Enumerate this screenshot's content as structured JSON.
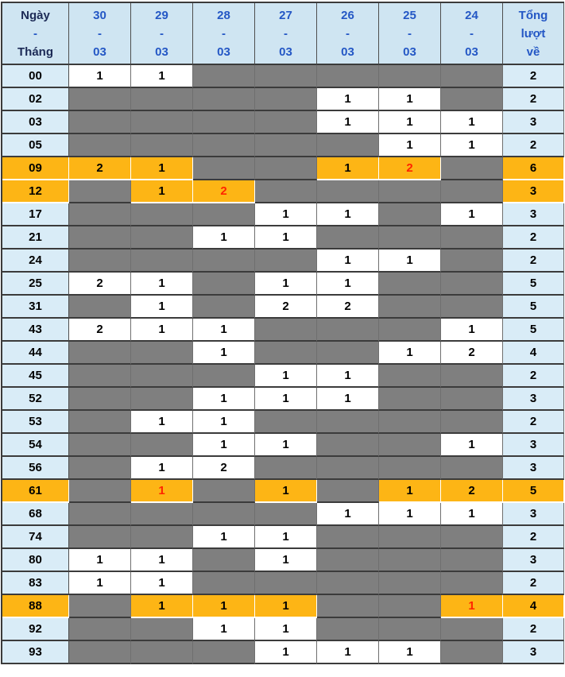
{
  "table": {
    "corner": {
      "line1": "Ngày",
      "dash": "-",
      "line2": "Tháng"
    },
    "date_columns": [
      {
        "day": "30",
        "dash": "-",
        "month": "03"
      },
      {
        "day": "29",
        "dash": "-",
        "month": "03"
      },
      {
        "day": "28",
        "dash": "-",
        "month": "03"
      },
      {
        "day": "27",
        "dash": "-",
        "month": "03"
      },
      {
        "day": "26",
        "dash": "-",
        "month": "03"
      },
      {
        "day": "25",
        "dash": "-",
        "month": "03"
      },
      {
        "day": "24",
        "dash": "-",
        "month": "03"
      }
    ],
    "total_header": {
      "line1": "Tổng",
      "line2": "lượt",
      "line3": "về"
    },
    "rows": [
      {
        "num": "00",
        "cells": [
          "1",
          "1",
          "",
          "",
          "",
          "",
          ""
        ],
        "total": "2",
        "hot": false,
        "red_cols": []
      },
      {
        "num": "02",
        "cells": [
          "",
          "",
          "",
          "",
          "1",
          "1",
          ""
        ],
        "total": "2",
        "hot": false,
        "red_cols": []
      },
      {
        "num": "03",
        "cells": [
          "",
          "",
          "",
          "",
          "1",
          "1",
          "1"
        ],
        "total": "3",
        "hot": false,
        "red_cols": []
      },
      {
        "num": "05",
        "cells": [
          "",
          "",
          "",
          "",
          "",
          "1",
          "1"
        ],
        "total": "2",
        "hot": false,
        "red_cols": []
      },
      {
        "num": "09",
        "cells": [
          "2",
          "1",
          "",
          "",
          "1",
          "2",
          ""
        ],
        "total": "6",
        "hot": true,
        "red_cols": [
          5
        ]
      },
      {
        "num": "12",
        "cells": [
          "",
          "1",
          "2",
          "",
          "",
          "",
          ""
        ],
        "total": "3",
        "hot": true,
        "red_cols": [
          2
        ]
      },
      {
        "num": "17",
        "cells": [
          "",
          "",
          "",
          "1",
          "1",
          "",
          "1"
        ],
        "total": "3",
        "hot": false,
        "red_cols": []
      },
      {
        "num": "21",
        "cells": [
          "",
          "",
          "1",
          "1",
          "",
          "",
          ""
        ],
        "total": "2",
        "hot": false,
        "red_cols": []
      },
      {
        "num": "24",
        "cells": [
          "",
          "",
          "",
          "",
          "1",
          "1",
          ""
        ],
        "total": "2",
        "hot": false,
        "red_cols": []
      },
      {
        "num": "25",
        "cells": [
          "2",
          "1",
          "",
          "1",
          "1",
          "",
          ""
        ],
        "total": "5",
        "hot": false,
        "red_cols": []
      },
      {
        "num": "31",
        "cells": [
          "",
          "1",
          "",
          "2",
          "2",
          "",
          ""
        ],
        "total": "5",
        "hot": false,
        "red_cols": []
      },
      {
        "num": "43",
        "cells": [
          "2",
          "1",
          "1",
          "",
          "",
          "",
          "1"
        ],
        "total": "5",
        "hot": false,
        "red_cols": []
      },
      {
        "num": "44",
        "cells": [
          "",
          "",
          "1",
          "",
          "",
          "1",
          "2"
        ],
        "total": "4",
        "hot": false,
        "red_cols": []
      },
      {
        "num": "45",
        "cells": [
          "",
          "",
          "",
          "1",
          "1",
          "",
          ""
        ],
        "total": "2",
        "hot": false,
        "red_cols": []
      },
      {
        "num": "52",
        "cells": [
          "",
          "",
          "1",
          "1",
          "1",
          "",
          ""
        ],
        "total": "3",
        "hot": false,
        "red_cols": []
      },
      {
        "num": "53",
        "cells": [
          "",
          "1",
          "1",
          "",
          "",
          "",
          ""
        ],
        "total": "2",
        "hot": false,
        "red_cols": []
      },
      {
        "num": "54",
        "cells": [
          "",
          "",
          "1",
          "1",
          "",
          "",
          "1"
        ],
        "total": "3",
        "hot": false,
        "red_cols": []
      },
      {
        "num": "56",
        "cells": [
          "",
          "1",
          "2",
          "",
          "",
          "",
          ""
        ],
        "total": "3",
        "hot": false,
        "red_cols": []
      },
      {
        "num": "61",
        "cells": [
          "",
          "1",
          "",
          "1",
          "",
          "1",
          "2"
        ],
        "total": "5",
        "hot": true,
        "red_cols": [
          1
        ]
      },
      {
        "num": "68",
        "cells": [
          "",
          "",
          "",
          "",
          "1",
          "1",
          "1"
        ],
        "total": "3",
        "hot": false,
        "red_cols": []
      },
      {
        "num": "74",
        "cells": [
          "",
          "",
          "1",
          "1",
          "",
          "",
          ""
        ],
        "total": "2",
        "hot": false,
        "red_cols": []
      },
      {
        "num": "80",
        "cells": [
          "1",
          "1",
          "",
          "1",
          "",
          "",
          ""
        ],
        "total": "3",
        "hot": false,
        "red_cols": []
      },
      {
        "num": "83",
        "cells": [
          "1",
          "1",
          "",
          "",
          "",
          "",
          ""
        ],
        "total": "2",
        "hot": false,
        "red_cols": []
      },
      {
        "num": "88",
        "cells": [
          "",
          "1",
          "1",
          "1",
          "",
          "",
          "1"
        ],
        "total": "4",
        "hot": true,
        "red_cols": [
          6
        ]
      },
      {
        "num": "92",
        "cells": [
          "",
          "",
          "1",
          "1",
          "",
          "",
          ""
        ],
        "total": "2",
        "hot": false,
        "red_cols": []
      },
      {
        "num": "93",
        "cells": [
          "",
          "",
          "",
          "1",
          "1",
          "1",
          ""
        ],
        "total": "3",
        "hot": false,
        "red_cols": []
      }
    ]
  },
  "colors": {
    "header_bg": "#cfe5f2",
    "label_bg": "#d9ecf7",
    "empty_bg": "#7f7f7f",
    "highlight_bg": "#fdb515",
    "date_text": "#2457c5",
    "corner_text": "#1c2a56",
    "value_text": "#000000",
    "red_text": "#ff2400",
    "border_dark": "#3b3b3b",
    "border_light": "#6f6f6f"
  }
}
